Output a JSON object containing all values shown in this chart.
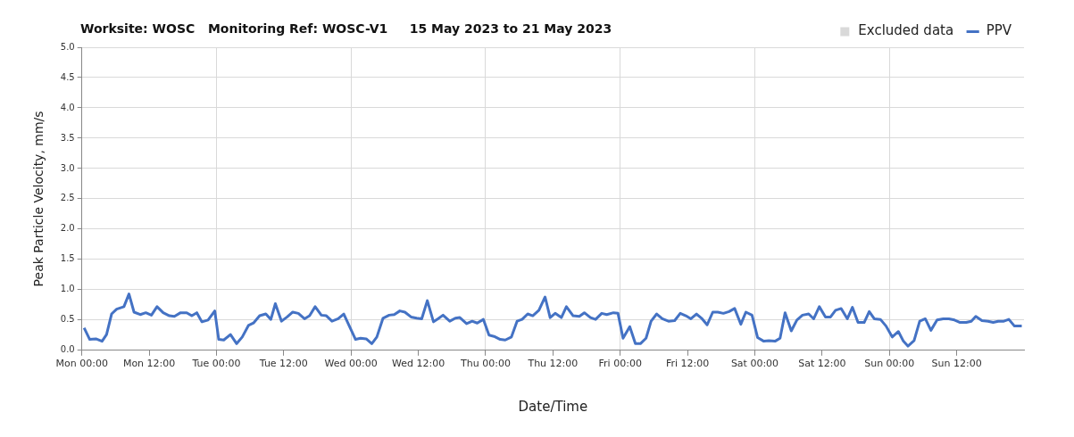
{
  "chart_data": {
    "type": "line",
    "title": "Worksite: WOSC   Monitoring Ref: WOSC-V1     15 May 2023 to 21 May 2023",
    "xlabel": "Date/Time",
    "ylabel": "Peak Particle Velocity, mm/s",
    "xlim": [
      "2023-05-15T00:00",
      "2023-05-22T00:00"
    ],
    "xticks": [
      {
        "value": "2023-05-15T00:00",
        "label": "Mon 00:00"
      },
      {
        "value": "2023-05-15T12:00",
        "label": "Mon 12:00"
      },
      {
        "value": "2023-05-16T00:00",
        "label": "Tue 00:00"
      },
      {
        "value": "2023-05-16T12:00",
        "label": "Tue 12:00"
      },
      {
        "value": "2023-05-17T00:00",
        "label": "Wed 00:00"
      },
      {
        "value": "2023-05-17T12:00",
        "label": "Wed 12:00"
      },
      {
        "value": "2023-05-18T00:00",
        "label": "Thu 00:00"
      },
      {
        "value": "2023-05-18T12:00",
        "label": "Thu 12:00"
      },
      {
        "value": "2023-05-19T00:00",
        "label": "Fri 00:00"
      },
      {
        "value": "2023-05-19T12:00",
        "label": "Fri 12:00"
      },
      {
        "value": "2023-05-20T00:00",
        "label": "Sat 00:00"
      },
      {
        "value": "2023-05-20T12:00",
        "label": "Sat 12:00"
      },
      {
        "value": "2023-05-21T00:00",
        "label": "Sun 00:00"
      },
      {
        "value": "2023-05-21T12:00",
        "label": "Sun 12:00"
      }
    ],
    "ylim": [
      0,
      5
    ],
    "yticks": [
      {
        "value": 0,
        "label": "0.0"
      },
      {
        "value": 0.5,
        "label": "0.5"
      },
      {
        "value": 1,
        "label": "1.0"
      },
      {
        "value": 1.5,
        "label": "1.5"
      },
      {
        "value": 2,
        "label": "2.0"
      },
      {
        "value": 2.5,
        "label": "2.5"
      },
      {
        "value": 3,
        "label": "3.0"
      },
      {
        "value": 3.5,
        "label": "3.5"
      },
      {
        "value": 4,
        "label": "4.0"
      },
      {
        "value": 4.5,
        "label": "4.5"
      },
      {
        "value": 5,
        "label": "5.0"
      }
    ],
    "grid": true,
    "legend": "top right",
    "marker": "none",
    "line_style": "solid",
    "series": [
      {
        "name": "Excluded data",
        "type": "bar",
        "color": "#d9d9d9"
      },
      {
        "name": "PPV",
        "color": "#4472c4",
        "x": [
          "2023-05-15T00:24",
          "2023-05-15T01:24",
          "2023-05-15T02:30",
          "2023-05-15T03:36",
          "2023-05-15T04:24",
          "2023-05-15T05:18",
          "2023-05-15T06:12",
          "2023-05-15T07:30",
          "2023-05-15T08:24",
          "2023-05-15T09:18",
          "2023-05-15T10:24",
          "2023-05-15T11:24",
          "2023-05-15T12:24",
          "2023-05-15T13:24",
          "2023-05-15T14:30",
          "2023-05-15T15:36",
          "2023-05-15T16:30",
          "2023-05-15T17:36",
          "2023-05-15T18:42",
          "2023-05-15T19:36",
          "2023-05-15T20:30",
          "2023-05-15T21:24",
          "2023-05-15T22:30",
          "2023-05-15T23:42",
          "2023-05-16T00:24",
          "2023-05-16T01:18",
          "2023-05-16T02:30",
          "2023-05-16T03:36",
          "2023-05-16T04:36",
          "2023-05-16T05:42",
          "2023-05-16T06:36",
          "2023-05-16T07:42",
          "2023-05-16T08:48",
          "2023-05-16T09:42",
          "2023-05-16T10:30",
          "2023-05-16T11:36",
          "2023-05-16T12:36",
          "2023-05-16T13:36",
          "2023-05-16T14:36",
          "2023-05-16T15:42",
          "2023-05-16T16:36",
          "2023-05-16T17:36",
          "2023-05-16T18:42",
          "2023-05-16T19:36",
          "2023-05-16T20:36",
          "2023-05-16T21:42",
          "2023-05-16T22:42",
          "2023-05-17T00:48",
          "2023-05-17T01:42",
          "2023-05-17T02:42",
          "2023-05-17T03:42",
          "2023-05-17T04:36",
          "2023-05-17T05:42",
          "2023-05-17T06:48",
          "2023-05-17T07:42",
          "2023-05-17T08:42",
          "2023-05-17T09:36",
          "2023-05-17T10:42",
          "2023-05-17T11:42",
          "2023-05-17T12:36",
          "2023-05-17T13:36",
          "2023-05-17T14:42",
          "2023-05-17T15:30",
          "2023-05-17T16:24",
          "2023-05-17T17:36",
          "2023-05-17T18:36",
          "2023-05-17T19:24",
          "2023-05-17T20:36",
          "2023-05-17T21:36",
          "2023-05-17T22:30",
          "2023-05-17T23:36",
          "2023-05-18T00:36",
          "2023-05-18T01:30",
          "2023-05-18T02:36",
          "2023-05-18T03:30",
          "2023-05-18T04:36",
          "2023-05-18T05:36",
          "2023-05-18T06:30",
          "2023-05-18T07:30",
          "2023-05-18T08:24",
          "2023-05-18T09:30",
          "2023-05-18T10:36",
          "2023-05-18T11:30",
          "2023-05-18T12:24",
          "2023-05-18T13:30",
          "2023-05-18T14:24",
          "2023-05-18T15:36",
          "2023-05-18T16:42",
          "2023-05-18T17:36",
          "2023-05-18T18:42",
          "2023-05-18T19:36",
          "2023-05-18T20:42",
          "2023-05-18T21:36",
          "2023-05-18T22:48",
          "2023-05-18T23:36",
          "2023-05-19T00:30",
          "2023-05-19T01:42",
          "2023-05-19T02:42",
          "2023-05-19T03:36",
          "2023-05-19T04:36",
          "2023-05-19T05:30",
          "2023-05-19T06:30",
          "2023-05-19T07:30",
          "2023-05-19T08:36",
          "2023-05-19T09:42",
          "2023-05-19T10:42",
          "2023-05-19T11:42",
          "2023-05-19T12:36",
          "2023-05-19T13:36",
          "2023-05-19T14:30",
          "2023-05-19T15:30",
          "2023-05-19T16:30",
          "2023-05-19T17:24",
          "2023-05-19T18:24",
          "2023-05-19T19:24",
          "2023-05-19T20:24",
          "2023-05-19T21:30",
          "2023-05-19T22:24",
          "2023-05-19T23:30",
          "2023-05-20T00:30",
          "2023-05-20T01:36",
          "2023-05-20T02:30",
          "2023-05-20T03:36",
          "2023-05-20T04:30",
          "2023-05-20T05:24",
          "2023-05-20T06:30",
          "2023-05-20T07:30",
          "2023-05-20T08:30",
          "2023-05-20T09:36",
          "2023-05-20T10:30",
          "2023-05-20T11:30",
          "2023-05-20T12:36",
          "2023-05-20T13:30",
          "2023-05-20T14:24",
          "2023-05-20T15:24",
          "2023-05-20T16:30",
          "2023-05-20T17:24",
          "2023-05-20T18:24",
          "2023-05-20T19:30",
          "2023-05-20T20:24",
          "2023-05-20T21:18",
          "2023-05-20T22:24",
          "2023-05-20T23:24",
          "2023-05-21T00:30",
          "2023-05-21T01:36",
          "2023-05-21T02:30",
          "2023-05-21T03:18",
          "2023-05-21T04:24",
          "2023-05-21T05:24",
          "2023-05-21T06:24",
          "2023-05-21T07:24",
          "2023-05-21T08:30",
          "2023-05-21T09:36",
          "2023-05-21T10:36",
          "2023-05-21T11:36",
          "2023-05-21T12:36",
          "2023-05-21T13:42",
          "2023-05-21T14:36",
          "2023-05-21T15:24",
          "2023-05-21T16:30",
          "2023-05-21T17:36",
          "2023-05-21T18:30",
          "2023-05-21T19:24",
          "2023-05-21T20:24",
          "2023-05-21T21:18",
          "2023-05-21T22:18",
          "2023-05-21T23:36"
        ],
        "values": [
          0.37,
          0.18,
          0.19,
          0.15,
          0.26,
          0.6,
          0.68,
          0.72,
          0.93,
          0.63,
          0.59,
          0.62,
          0.58,
          0.72,
          0.62,
          0.57,
          0.56,
          0.62,
          0.62,
          0.57,
          0.62,
          0.47,
          0.5,
          0.65,
          0.18,
          0.17,
          0.26,
          0.11,
          0.22,
          0.41,
          0.45,
          0.57,
          0.6,
          0.51,
          0.77,
          0.48,
          0.55,
          0.63,
          0.61,
          0.52,
          0.57,
          0.72,
          0.58,
          0.57,
          0.48,
          0.52,
          0.6,
          0.18,
          0.2,
          0.19,
          0.11,
          0.22,
          0.53,
          0.58,
          0.59,
          0.65,
          0.63,
          0.55,
          0.53,
          0.52,
          0.82,
          0.47,
          0.52,
          0.58,
          0.48,
          0.53,
          0.54,
          0.44,
          0.48,
          0.45,
          0.51,
          0.25,
          0.23,
          0.18,
          0.17,
          0.22,
          0.48,
          0.51,
          0.6,
          0.57,
          0.66,
          0.88,
          0.54,
          0.61,
          0.54,
          0.72,
          0.57,
          0.56,
          0.62,
          0.54,
          0.51,
          0.61,
          0.59,
          0.62,
          0.61,
          0.2,
          0.39,
          0.11,
          0.11,
          0.2,
          0.48,
          0.6,
          0.52,
          0.48,
          0.49,
          0.61,
          0.57,
          0.52,
          0.6,
          0.53,
          0.42,
          0.63,
          0.63,
          0.61,
          0.64,
          0.69,
          0.43,
          0.63,
          0.58,
          0.21,
          0.15,
          0.16,
          0.15,
          0.2,
          0.62,
          0.32,
          0.5,
          0.58,
          0.6,
          0.52,
          0.72,
          0.55,
          0.55,
          0.66,
          0.69,
          0.52,
          0.71,
          0.46,
          0.46,
          0.64,
          0.52,
          0.51,
          0.4,
          0.22,
          0.31,
          0.15,
          0.07,
          0.16,
          0.48,
          0.52,
          0.33,
          0.5,
          0.52,
          0.52,
          0.5,
          0.46,
          0.46,
          0.48,
          0.56,
          0.49,
          0.48,
          0.46,
          0.48,
          0.48,
          0.51,
          0.4,
          0.4
        ]
      }
    ]
  }
}
